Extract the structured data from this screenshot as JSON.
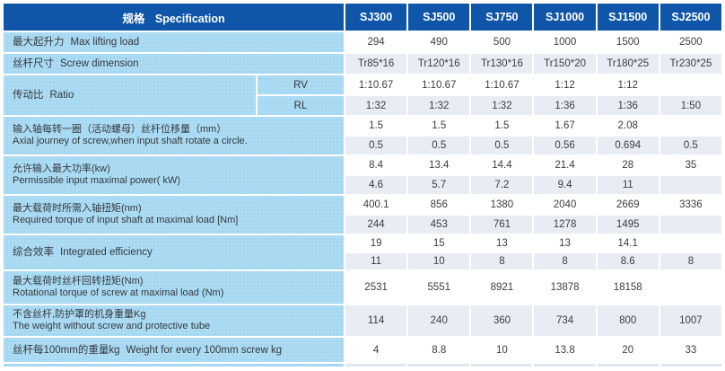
{
  "table": {
    "header": {
      "spec_zh": "规格",
      "spec_en": "Specification",
      "models": [
        "SJ300",
        "SJ500",
        "SJ750",
        "SJ1000",
        "SJ1500",
        "SJ2500"
      ]
    },
    "rows": [
      {
        "id": "max-lifting-load",
        "label_zh": "最大起升力",
        "label_en": "Max lifting load",
        "two_line": false,
        "values": [
          [
            "294",
            "490",
            "500",
            "1000",
            "1500",
            "2500"
          ]
        ]
      },
      {
        "id": "screw-dimension",
        "label_zh": "丝杆尺寸",
        "label_en": "Screw dimension",
        "two_line": false,
        "values": [
          [
            "Tr85*16",
            "Tr120*16",
            "Tr130*16",
            "Tr150*20",
            "Tr180*25",
            "Tr230*25"
          ]
        ]
      },
      {
        "id": "ratio",
        "label_zh": "传动比",
        "label_en": "Ratio",
        "two_line": false,
        "subs": [
          "RV",
          "RL"
        ],
        "values": [
          [
            "1:10.67",
            "1:10.67",
            "1:10.67",
            "1:12",
            "1:12",
            ""
          ],
          [
            "1:32",
            "1:32",
            "1:32",
            "1:36",
            "1:36",
            "1:50"
          ]
        ]
      },
      {
        "id": "axial-journey",
        "label_zh": "输入轴每转一圈（活动螺母）丝杆位移量（mm）",
        "label_en": "Axial journey of screw,when input shaft rotate a circle.",
        "two_line": true,
        "values": [
          [
            "1.5",
            "1.5",
            "1.5",
            "1.67",
            "2.08",
            ""
          ],
          [
            "0.5",
            "0.5",
            "0.5",
            "0.56",
            "0.694",
            "0.5"
          ]
        ]
      },
      {
        "id": "max-input-power",
        "label_zh": "允许输入最大功率(kw)",
        "label_en": "Permissible input maximal power( kW)",
        "two_line": true,
        "values": [
          [
            "8.4",
            "13.4",
            "14.4",
            "21.4",
            "28",
            "35"
          ],
          [
            "4.6",
            "5.7",
            "7.2",
            "9.4",
            "11",
            ""
          ]
        ]
      },
      {
        "id": "required-input-torque",
        "label_zh": "最大载荷时所需入轴扭矩(nm)",
        "label_en": "Required torque of input shaft at maximal load [Nm]",
        "two_line": true,
        "values": [
          [
            "400.1",
            "856",
            "1380",
            "2040",
            "2669",
            "3336"
          ],
          [
            "244",
            "453",
            "761",
            "1278",
            "1495",
            ""
          ]
        ]
      },
      {
        "id": "integrated-efficiency",
        "label_zh": "综合效率",
        "label_en": "Integrated efficiency",
        "two_line": false,
        "values": [
          [
            "19",
            "15",
            "13",
            "13",
            "14.1",
            ""
          ],
          [
            "11",
            "10",
            "8",
            "8",
            "8.6",
            "8"
          ]
        ]
      },
      {
        "id": "rotational-torque",
        "label_zh": "最大载荷时丝杆回转扭矩(Nm)",
        "label_en": "Rotational torque of screw at maximal load  (Nm)",
        "two_line": true,
        "values": [
          [
            "2531",
            "5551",
            "8921",
            "13878",
            "18158",
            ""
          ]
        ]
      },
      {
        "id": "body-weight",
        "label_zh": "不含丝杆,防护罩的机身重量Kg",
        "label_en": "The weight without screw and protective tube",
        "two_line": true,
        "values": [
          [
            "114",
            "240",
            "360",
            "734",
            "800",
            "1007"
          ]
        ]
      },
      {
        "id": "screw-weight-per-100mm",
        "label_zh": "丝杆每100mm的重量kg",
        "label_en": "Weight for every 100mm screw kg",
        "two_line": false,
        "values": [
          [
            "4",
            "8.8",
            "10",
            "13.8",
            "20",
            "33"
          ]
        ]
      }
    ],
    "colors": {
      "header_blue": "#0f56a9",
      "label_blue": "#a6d8f2",
      "row_gray": "#e7edf3",
      "row_white": "#ffffff",
      "text": "#3a3d40"
    }
  }
}
